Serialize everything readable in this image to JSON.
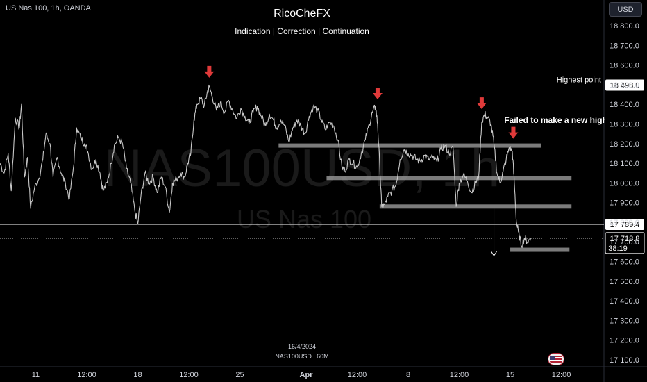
{
  "header": {
    "symbol_info": "US Nas 100, 1h, OANDA",
    "currency_button": "USD"
  },
  "watermark": {
    "symbol": "NAS100USD, 1h",
    "name": "US Nas 100"
  },
  "footer": {
    "date": "16/4/2024",
    "symbol_interval": "NAS100USD | 60M"
  },
  "colors": {
    "background": "#000000",
    "price_line": "#c8c8c8",
    "horizontal_line": "#ffffff",
    "zone": "#9a9a9a",
    "arrow": "#e03a3a",
    "axis_text": "#d1d4dc"
  },
  "icons": {
    "arrow": "down-arrow-icon",
    "flag": "us-flag-icon"
  },
  "chart_data": {
    "type": "line",
    "title": "RicoCheFX",
    "subtitle": "Indication | Correction | Continuation",
    "xlabel": "",
    "ylabel": "",
    "ylim": [
      17050,
      18920
    ],
    "y_ticks": [
      18800,
      18700,
      18600,
      18500,
      18400,
      18300,
      18200,
      18100,
      18000,
      17900,
      17800,
      17700,
      17600,
      17500,
      17400,
      17300,
      17200,
      17100
    ],
    "y_tick_labels": [
      "18 800.0",
      "18 700.0",
      "18 600.0",
      "18 500.0",
      "18 400.0",
      "18 300.0",
      "18 200.0",
      "18 100.0",
      "18 000.0",
      "17 900.0",
      "17 800.0",
      "17 700.0",
      "17 600.0",
      "17 500.0",
      "17 400.0",
      "17 300.0",
      "17 200.0",
      "17 100.0"
    ],
    "x_ticks": [
      {
        "x": 0.35,
        "label": "11"
      },
      {
        "x": 0.85,
        "label": "12:00"
      },
      {
        "x": 1.35,
        "label": "18"
      },
      {
        "x": 1.85,
        "label": "12:00"
      },
      {
        "x": 2.35,
        "label": "25"
      },
      {
        "x": 3.0,
        "label": "Apr"
      },
      {
        "x": 3.5,
        "label": "12:00"
      },
      {
        "x": 4.0,
        "label": "8"
      },
      {
        "x": 4.5,
        "label": "12:00"
      },
      {
        "x": 5.0,
        "label": "15"
      },
      {
        "x": 5.5,
        "label": "12:00"
      }
    ],
    "x_range": [
      0,
      5.85
    ],
    "series": [
      {
        "values": [
          [
            0.0,
            18100
          ],
          [
            0.04,
            18050
          ],
          [
            0.08,
            18150
          ],
          [
            0.11,
            17960
          ],
          [
            0.15,
            18330
          ],
          [
            0.19,
            18280
          ],
          [
            0.21,
            18400
          ],
          [
            0.24,
            18030
          ],
          [
            0.27,
            18130
          ],
          [
            0.3,
            17870
          ],
          [
            0.34,
            17980
          ],
          [
            0.38,
            18020
          ],
          [
            0.42,
            18120
          ],
          [
            0.45,
            18250
          ],
          [
            0.49,
            18200
          ],
          [
            0.52,
            18030
          ],
          [
            0.56,
            18130
          ],
          [
            0.6,
            18050
          ],
          [
            0.64,
            18000
          ],
          [
            0.68,
            17920
          ],
          [
            0.72,
            18080
          ],
          [
            0.75,
            18280
          ],
          [
            0.79,
            18230
          ],
          [
            0.83,
            18200
          ],
          [
            0.86,
            18160
          ],
          [
            0.9,
            18070
          ],
          [
            0.94,
            18120
          ],
          [
            0.98,
            18050
          ],
          [
            1.01,
            17960
          ],
          [
            1.05,
            18000
          ],
          [
            1.09,
            18100
          ],
          [
            1.12,
            18190
          ],
          [
            1.16,
            18230
          ],
          [
            1.2,
            18200
          ],
          [
            1.24,
            18070
          ],
          [
            1.28,
            18000
          ],
          [
            1.32,
            17860
          ],
          [
            1.35,
            17790
          ],
          [
            1.38,
            17930
          ],
          [
            1.42,
            18050
          ],
          [
            1.46,
            18000
          ],
          [
            1.5,
            18030
          ],
          [
            1.54,
            17950
          ],
          [
            1.58,
            18030
          ],
          [
            1.62,
            17980
          ],
          [
            1.66,
            17850
          ],
          [
            1.69,
            18000
          ],
          [
            1.73,
            18020
          ],
          [
            1.77,
            18050
          ],
          [
            1.81,
            18030
          ],
          [
            1.84,
            18100
          ],
          [
            1.87,
            18150
          ],
          [
            1.9,
            18320
          ],
          [
            1.93,
            18400
          ],
          [
            1.97,
            18430
          ],
          [
            2.0,
            18390
          ],
          [
            2.03,
            18460
          ],
          [
            2.05,
            18490
          ],
          [
            2.08,
            18440
          ],
          [
            2.12,
            18370
          ],
          [
            2.16,
            18410
          ],
          [
            2.2,
            18360
          ],
          [
            2.24,
            18420
          ],
          [
            2.28,
            18370
          ],
          [
            2.32,
            18330
          ],
          [
            2.36,
            18380
          ],
          [
            2.4,
            18340
          ],
          [
            2.44,
            18300
          ],
          [
            2.48,
            18360
          ],
          [
            2.52,
            18390
          ],
          [
            2.56,
            18340
          ],
          [
            2.6,
            18290
          ],
          [
            2.64,
            18350
          ],
          [
            2.68,
            18320
          ],
          [
            2.71,
            18280
          ],
          [
            2.75,
            18320
          ],
          [
            2.79,
            18290
          ],
          [
            2.83,
            18210
          ],
          [
            2.87,
            18280
          ],
          [
            2.91,
            18320
          ],
          [
            2.95,
            18290
          ],
          [
            2.99,
            18250
          ],
          [
            3.03,
            18340
          ],
          [
            3.07,
            18390
          ],
          [
            3.11,
            18370
          ],
          [
            3.15,
            18320
          ],
          [
            3.19,
            18270
          ],
          [
            3.23,
            18310
          ],
          [
            3.27,
            18290
          ],
          [
            3.31,
            18220
          ],
          [
            3.35,
            18080
          ],
          [
            3.38,
            18060
          ],
          [
            3.42,
            18120
          ],
          [
            3.46,
            18100
          ],
          [
            3.5,
            18080
          ],
          [
            3.54,
            18150
          ],
          [
            3.58,
            18220
          ],
          [
            3.62,
            18300
          ],
          [
            3.65,
            18360
          ],
          [
            3.68,
            18390
          ],
          [
            3.7,
            18300
          ],
          [
            3.72,
            18100
          ],
          [
            3.74,
            17880
          ],
          [
            3.77,
            17890
          ],
          [
            3.8,
            17930
          ],
          [
            3.84,
            17960
          ],
          [
            3.88,
            17990
          ],
          [
            3.92,
            18120
          ],
          [
            3.96,
            18170
          ],
          [
            4.0,
            18150
          ],
          [
            4.04,
            18140
          ],
          [
            4.08,
            18120
          ],
          [
            4.12,
            18110
          ],
          [
            4.16,
            18140
          ],
          [
            4.2,
            18120
          ],
          [
            4.24,
            18130
          ],
          [
            4.28,
            18110
          ],
          [
            4.32,
            18170
          ],
          [
            4.36,
            18190
          ],
          [
            4.4,
            18150
          ],
          [
            4.44,
            18180
          ],
          [
            4.47,
            17880
          ],
          [
            4.5,
            18000
          ],
          [
            4.54,
            18040
          ],
          [
            4.58,
            18010
          ],
          [
            4.62,
            17950
          ],
          [
            4.66,
            18000
          ],
          [
            4.69,
            18030
          ],
          [
            4.72,
            18310
          ],
          [
            4.75,
            18350
          ],
          [
            4.78,
            18330
          ],
          [
            4.81,
            18300
          ],
          [
            4.84,
            18200
          ],
          [
            4.87,
            18050
          ],
          [
            4.9,
            18000
          ],
          [
            4.93,
            18060
          ],
          [
            4.96,
            18120
          ],
          [
            4.99,
            18180
          ],
          [
            5.02,
            18160
          ],
          [
            5.04,
            18000
          ],
          [
            5.06,
            17800
          ],
          [
            5.08,
            17750
          ],
          [
            5.11,
            17680
          ],
          [
            5.14,
            17720
          ],
          [
            5.17,
            17700
          ],
          [
            5.2,
            17718.8
          ]
        ]
      }
    ],
    "horizontal_lines": [
      {
        "price": 18498.0,
        "from_x": 2.05,
        "label": "Highest point",
        "axis_label": "18 498.0"
      },
      {
        "price": 17789.4,
        "from_x": 0.0,
        "label": "",
        "axis_label": "17 789.4"
      }
    ],
    "current_price": {
      "price": 17718.8,
      "axis_label": "17 718.8",
      "countdown": "38:19"
    },
    "zones": [
      {
        "price": 18190,
        "x_start": 2.73,
        "x_end": 5.3
      },
      {
        "price": 18025,
        "x_start": 3.2,
        "x_end": 5.6
      },
      {
        "price": 17880,
        "x_start": 3.72,
        "x_end": 5.6
      },
      {
        "price": 17660,
        "x_start": 5.0,
        "x_end": 5.58
      }
    ],
    "markers": [
      {
        "x": 2.05,
        "price": 18560
      },
      {
        "x": 3.7,
        "price": 18450
      },
      {
        "x": 4.72,
        "price": 18400
      },
      {
        "x": 5.03,
        "price": 18250
      }
    ],
    "annotations": [
      {
        "text": "Failed to make a new high",
        "x": 4.94,
        "price": 18305
      },
      {
        "text": "",
        "type": "arrow-down",
        "x": 4.84,
        "price_from": 17870,
        "price_to": 17630
      }
    ]
  }
}
